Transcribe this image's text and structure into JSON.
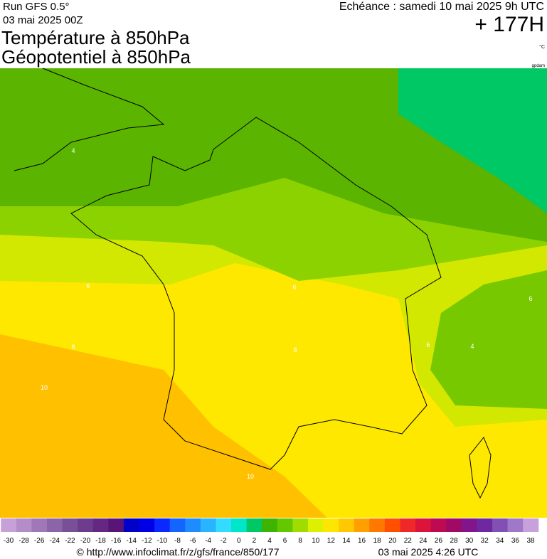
{
  "header": {
    "run": "Run GFS 0.5°",
    "date": "03 mai 2025 00Z",
    "echeance": "Echéance : samedi 10 mai 2025 9h UTC",
    "offset": "+ 177H",
    "title1": "Température à 850hPa",
    "title2": "Géopotentiel à 850hPa",
    "unit": "°C",
    "credit": "gpdam"
  },
  "map": {
    "contour_labels": [
      4,
      6,
      8,
      10,
      10,
      6,
      8,
      4,
      6,
      6
    ]
  },
  "colorbar": {
    "ticks": [
      -30,
      -28,
      -26,
      -24,
      -22,
      -20,
      -18,
      -16,
      -14,
      -12,
      -10,
      -8,
      -6,
      -4,
      -2,
      0,
      2,
      4,
      6,
      8,
      10,
      12,
      14,
      16,
      18,
      20,
      22,
      24,
      26,
      28,
      30,
      32,
      34,
      36,
      38
    ],
    "colors": [
      "#c8a0d8",
      "#b48cc8",
      "#a078b8",
      "#8c64a8",
      "#785096",
      "#6e3c8c",
      "#642882",
      "#5a1478",
      "#0000c8",
      "#0000e6",
      "#0a28ff",
      "#1464ff",
      "#1e8cff",
      "#28b4ff",
      "#32dcff",
      "#00e6c8",
      "#00c864",
      "#3cb400",
      "#64c800",
      "#a0dc00",
      "#dcf000",
      "#ffe600",
      "#ffc800",
      "#ffa000",
      "#ff7800",
      "#ff5000",
      "#f02828",
      "#dc143c",
      "#be0a50",
      "#a00a64",
      "#82148c",
      "#6e28a0",
      "#8250b4",
      "#a078c8",
      "#c8a0dc"
    ]
  },
  "footer": {
    "url": "© http://www.infoclimat.fr/z/gfs/france/850/177",
    "time": "03 mai 2025  4:26 UTC"
  }
}
